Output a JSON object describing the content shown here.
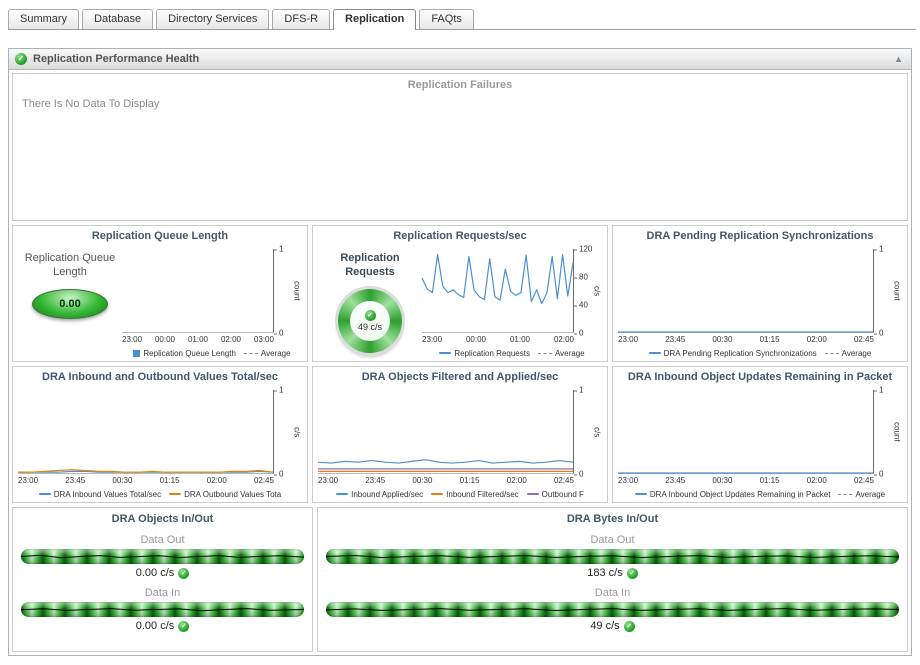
{
  "icons": {
    "check": "✓",
    "collapse": "▲"
  },
  "tabs": {
    "items": [
      {
        "label": "Summary"
      },
      {
        "label": "Database"
      },
      {
        "label": "Directory Services"
      },
      {
        "label": "DFS-R"
      },
      {
        "label": "Replication"
      },
      {
        "label": "FAQts"
      }
    ],
    "active": "Replication"
  },
  "header": {
    "title": "Replication Performance Health"
  },
  "failures": {
    "title": "Replication Failures",
    "message": "There Is No Data To Display"
  },
  "gauges": {
    "queue_length": {
      "label": "Replication Queue Length",
      "value": "0.00"
    },
    "requests": {
      "label": "Replication Requests",
      "value": "49 c/s"
    }
  },
  "flows": {
    "objects": {
      "title": "DRA Objects In/Out",
      "out_label": "Data Out",
      "out_value": "0.00 c/s",
      "in_label": "Data In",
      "in_value": "0.00 c/s"
    },
    "bytes": {
      "title": "DRA Bytes In/Out",
      "out_label": "Data Out",
      "out_value": "183 c/s",
      "in_label": "Data In",
      "in_value": "49 c/s"
    }
  },
  "colors": {
    "series_blue": "#4a90d2",
    "series_orange": "#e8820c",
    "series_purple": "#8e6bbf",
    "gauge_green": "#2eae2e"
  },
  "chart_data": [
    {
      "type": "line",
      "title": "Replication Queue Length",
      "x_ticks": [
        "23:00",
        "00:00",
        "01:00",
        "02:00",
        "03:00"
      ],
      "ylabel": "count",
      "ylim": [
        0,
        1
      ],
      "y_ticks": [
        0,
        1
      ],
      "series": [
        {
          "name": "Replication Queue Length",
          "color": "#4a90d2",
          "values": []
        }
      ],
      "legend": [
        {
          "label": "Replication Queue Length",
          "color": "#4a90d2",
          "marker": "square"
        },
        {
          "label": "Average",
          "marker": "dash"
        }
      ]
    },
    {
      "type": "line",
      "title": "Replication Requests/sec",
      "x_ticks": [
        "23:00",
        "00:00",
        "01:00",
        "02:00"
      ],
      "ylabel": "c/s",
      "ylim": [
        0,
        120
      ],
      "y_ticks": [
        0,
        40,
        80,
        120
      ],
      "series": [
        {
          "name": "Replication Requests",
          "color": "#4a90d2",
          "values": [
            78,
            62,
            57,
            112,
            66,
            57,
            61,
            54,
            50,
            109,
            61,
            51,
            47,
            106,
            51,
            46,
            91,
            59,
            53,
            57,
            111,
            44,
            61,
            41,
            57,
            109,
            48,
            112,
            52,
            100
          ]
        }
      ],
      "legend": [
        {
          "label": "Replication Requests",
          "color": "#4a90d2",
          "marker": "line"
        },
        {
          "label": "Average",
          "marker": "dash"
        }
      ]
    },
    {
      "type": "line",
      "title": "DRA Pending Replication Synchronizations",
      "x_ticks": [
        "23:00",
        "23:45",
        "00:30",
        "01:15",
        "02:00",
        "02:45"
      ],
      "ylabel": "count",
      "ylim": [
        0,
        1
      ],
      "y_ticks": [
        0,
        1
      ],
      "series": [
        {
          "name": "DRA Pending Replication Synchronizations",
          "color": "#4a90d2",
          "values": [
            0,
            0,
            0,
            0,
            0,
            0,
            0,
            0,
            0,
            0,
            0,
            0,
            0,
            0,
            0,
            0,
            0,
            0,
            0,
            0
          ]
        }
      ],
      "legend": [
        {
          "label": "DRA Pending Replication Synchronizations",
          "color": "#4a90d2",
          "marker": "line"
        },
        {
          "label": "Average",
          "marker": "dash"
        }
      ]
    },
    {
      "type": "line",
      "title": "DRA Inbound and Outbound Values Total/sec",
      "x_ticks": [
        "23:00",
        "23:45",
        "00:30",
        "01:15",
        "02:00",
        "02:45"
      ],
      "ylabel": "c/s",
      "ylim": [
        0,
        1
      ],
      "y_ticks": [
        0,
        1
      ],
      "series": [
        {
          "name": "DRA Inbound Values Total/sec",
          "color": "#4a90d2",
          "values": [
            0.01,
            0.01,
            0.01,
            0.01,
            0.02,
            0.02,
            0.01,
            0.01,
            0.01,
            0.01,
            0.01,
            0.01,
            0.01,
            0.01,
            0.01,
            0.01,
            0.01,
            0.01,
            0.02,
            0.01
          ]
        },
        {
          "name": "DRA Outbound Values Total/sec",
          "color": "#e8820c",
          "values": [
            0.01,
            0.01,
            0.02,
            0.03,
            0.04,
            0.03,
            0.02,
            0.02,
            0.01,
            0.01,
            0.02,
            0.01,
            0.01,
            0.01,
            0.01,
            0.01,
            0.02,
            0.02,
            0.03,
            0.01
          ]
        }
      ],
      "legend": [
        {
          "label": "DRA Inbound Values Total/sec",
          "color": "#4a90d2",
          "marker": "line"
        },
        {
          "label": "DRA Outbound Values Tota",
          "color": "#e8820c",
          "marker": "line"
        }
      ]
    },
    {
      "type": "line",
      "title": "DRA Objects Filtered and Applied/sec",
      "x_ticks": [
        "23:00",
        "23:45",
        "00:30",
        "01:15",
        "02:00",
        "02:45"
      ],
      "ylabel": "c/s",
      "ylim": [
        0,
        1
      ],
      "y_ticks": [
        0,
        1
      ],
      "series": [
        {
          "name": "Inbound Applied/sec",
          "color": "#4a90d2",
          "values": [
            0.13,
            0.12,
            0.14,
            0.13,
            0.15,
            0.13,
            0.12,
            0.14,
            0.16,
            0.13,
            0.12,
            0.13,
            0.15,
            0.12,
            0.13,
            0.14,
            0.12,
            0.13,
            0.15,
            0.13
          ]
        },
        {
          "name": "Inbound Filtered/sec",
          "color": "#e8820c",
          "values": [
            0.02,
            0.02,
            0.02,
            0.02,
            0.02,
            0.02,
            0.02,
            0.02,
            0.02,
            0.02,
            0.02,
            0.02,
            0.02,
            0.02,
            0.02,
            0.02,
            0.02,
            0.02,
            0.02,
            0.02
          ]
        },
        {
          "name": "Outbound Filtered/sec",
          "color": "#8e6bbf",
          "values": [
            0.05,
            0.05,
            0.05,
            0.05,
            0.05,
            0.05,
            0.05,
            0.05,
            0.05,
            0.05,
            0.05,
            0.05,
            0.05,
            0.05,
            0.05,
            0.05,
            0.05,
            0.05,
            0.05,
            0.05
          ]
        }
      ],
      "legend": [
        {
          "label": "Inbound Applied/sec",
          "color": "#4a90d2",
          "marker": "line"
        },
        {
          "label": "Inbound Filtered/sec",
          "color": "#e8820c",
          "marker": "line"
        },
        {
          "label": "Outbound F",
          "color": "#8e6bbf",
          "marker": "line"
        }
      ]
    },
    {
      "type": "line",
      "title": "DRA Inbound Object Updates Remaining in Packet",
      "x_ticks": [
        "23:00",
        "23:45",
        "00:30",
        "01:15",
        "02:00",
        "02:45"
      ],
      "ylabel": "count",
      "ylim": [
        0,
        1
      ],
      "y_ticks": [
        0,
        1
      ],
      "series": [
        {
          "name": "DRA Inbound Object Updates Remaining in Packet",
          "color": "#4a90d2",
          "values": [
            0,
            0,
            0,
            0,
            0,
            0,
            0,
            0,
            0,
            0,
            0,
            0,
            0,
            0,
            0,
            0,
            0,
            0,
            0,
            0
          ]
        }
      ],
      "legend": [
        {
          "label": "DRA Inbound Object Updates Remaining in Packet",
          "color": "#4a90d2",
          "marker": "line"
        },
        {
          "label": "Average",
          "marker": "dash"
        }
      ]
    }
  ]
}
